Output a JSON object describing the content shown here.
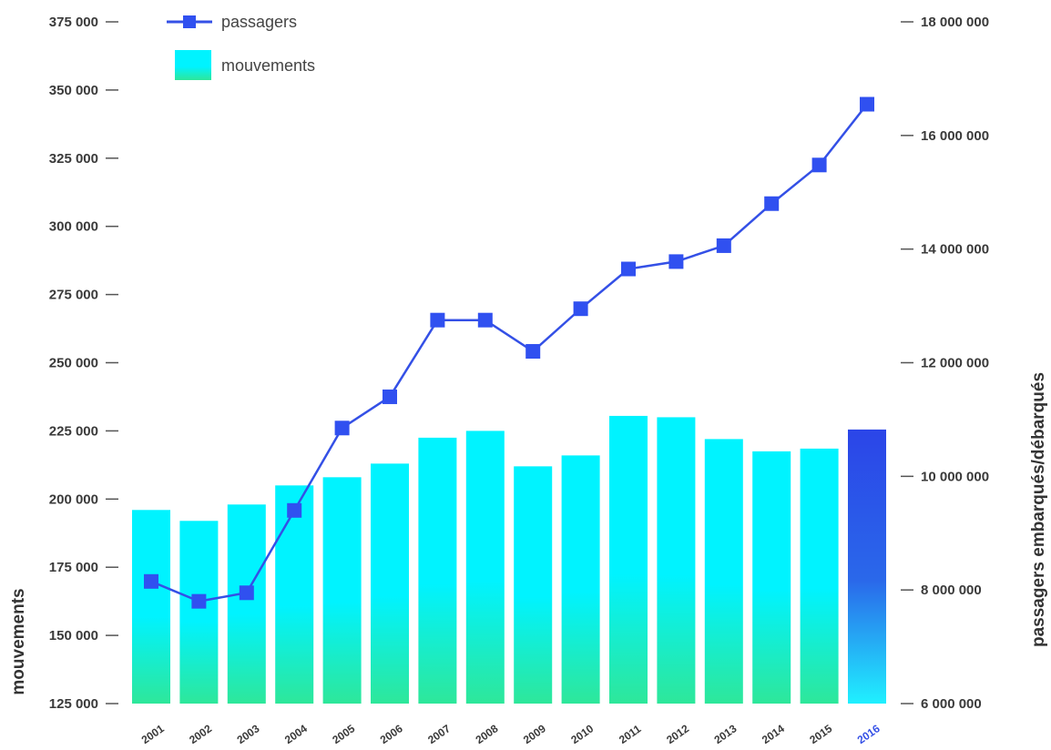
{
  "chart_data": {
    "type": "bar",
    "categories": [
      "2001",
      "2002",
      "2003",
      "2004",
      "2005",
      "2006",
      "2007",
      "2008",
      "2009",
      "2010",
      "2011",
      "2012",
      "2013",
      "2014",
      "2015",
      "2016"
    ],
    "series": [
      {
        "name": "mouvements",
        "type": "bar",
        "axis": "left",
        "values": [
          196000,
          192000,
          198000,
          205000,
          208000,
          213000,
          222500,
          225000,
          212000,
          216000,
          230500,
          230000,
          222000,
          217500,
          218500,
          225500
        ]
      },
      {
        "name": "passagers",
        "type": "line",
        "axis": "right",
        "values": [
          8150000,
          7800000,
          7950000,
          9400000,
          10850000,
          11400000,
          12750000,
          12750000,
          12200000,
          12950000,
          13650000,
          13780000,
          14060000,
          14800000,
          15480000,
          16550000
        ]
      }
    ],
    "highlight_category": "2016",
    "ylabel": "mouvements",
    "y2label": "passagers embarqués/débarqués",
    "ylim": [
      125000,
      375000
    ],
    "y2lim": [
      6000000,
      18000000
    ],
    "yticks": [
      "125 000",
      "150 000",
      "175 000",
      "200 000",
      "225 000",
      "250 000",
      "275 000",
      "300 000",
      "325 000",
      "350 000",
      "375 000"
    ],
    "y2ticks": [
      "6 000 000",
      "8 000 000",
      "10 000 000",
      "12 000 000",
      "14 000 000",
      "16 000 000",
      "18 000 000"
    ],
    "legend": [
      "passagers",
      "mouvements"
    ],
    "legend_position": "top-left",
    "grid": false,
    "colors": {
      "bar_top": "#00f3ff",
      "bar_bottom": "#2ee79a",
      "highlight_top": "#2b45e8",
      "highlight_mid": "#2a68ea",
      "highlight_bottom": "#20f0ff",
      "line": "#3450e6",
      "marker": "#3050f0",
      "highlight_tick": "#3450e6"
    }
  }
}
